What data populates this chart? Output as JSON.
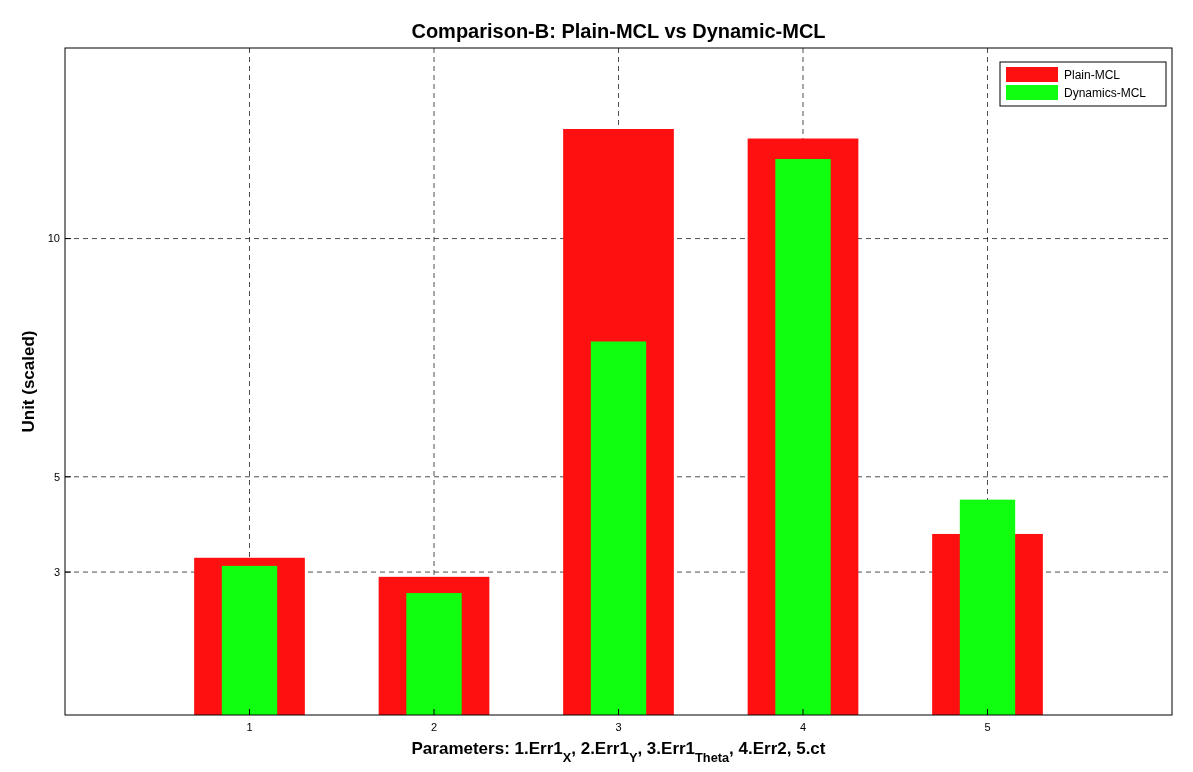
{
  "chart_data": {
    "type": "bar",
    "title": "Comparison-B: Plain-MCL vs Dynamic-MCL",
    "xlabel": "Parameters: 1.Err1$_{X}$, 2.Err1$_{Y}$, 3.Err1$_{Theta}$, 4.Err2, 5.ct",
    "ylabel": "Unit (scaled)",
    "categories": [
      "1",
      "2",
      "3",
      "4",
      "5"
    ],
    "series": [
      {
        "name": "Plain-MCL",
        "color": "#ff1010",
        "values": [
          3.3,
          2.9,
          12.3,
          12.1,
          3.8
        ]
      },
      {
        "name": "Dynamics-MCL",
        "color": "#10ff10",
        "values": [
          3.13,
          2.56,
          7.84,
          11.67,
          4.52
        ]
      }
    ],
    "ylim": [
      0,
      14
    ],
    "yticks": [
      3,
      5,
      10
    ],
    "grid": true,
    "legend": "top right"
  }
}
